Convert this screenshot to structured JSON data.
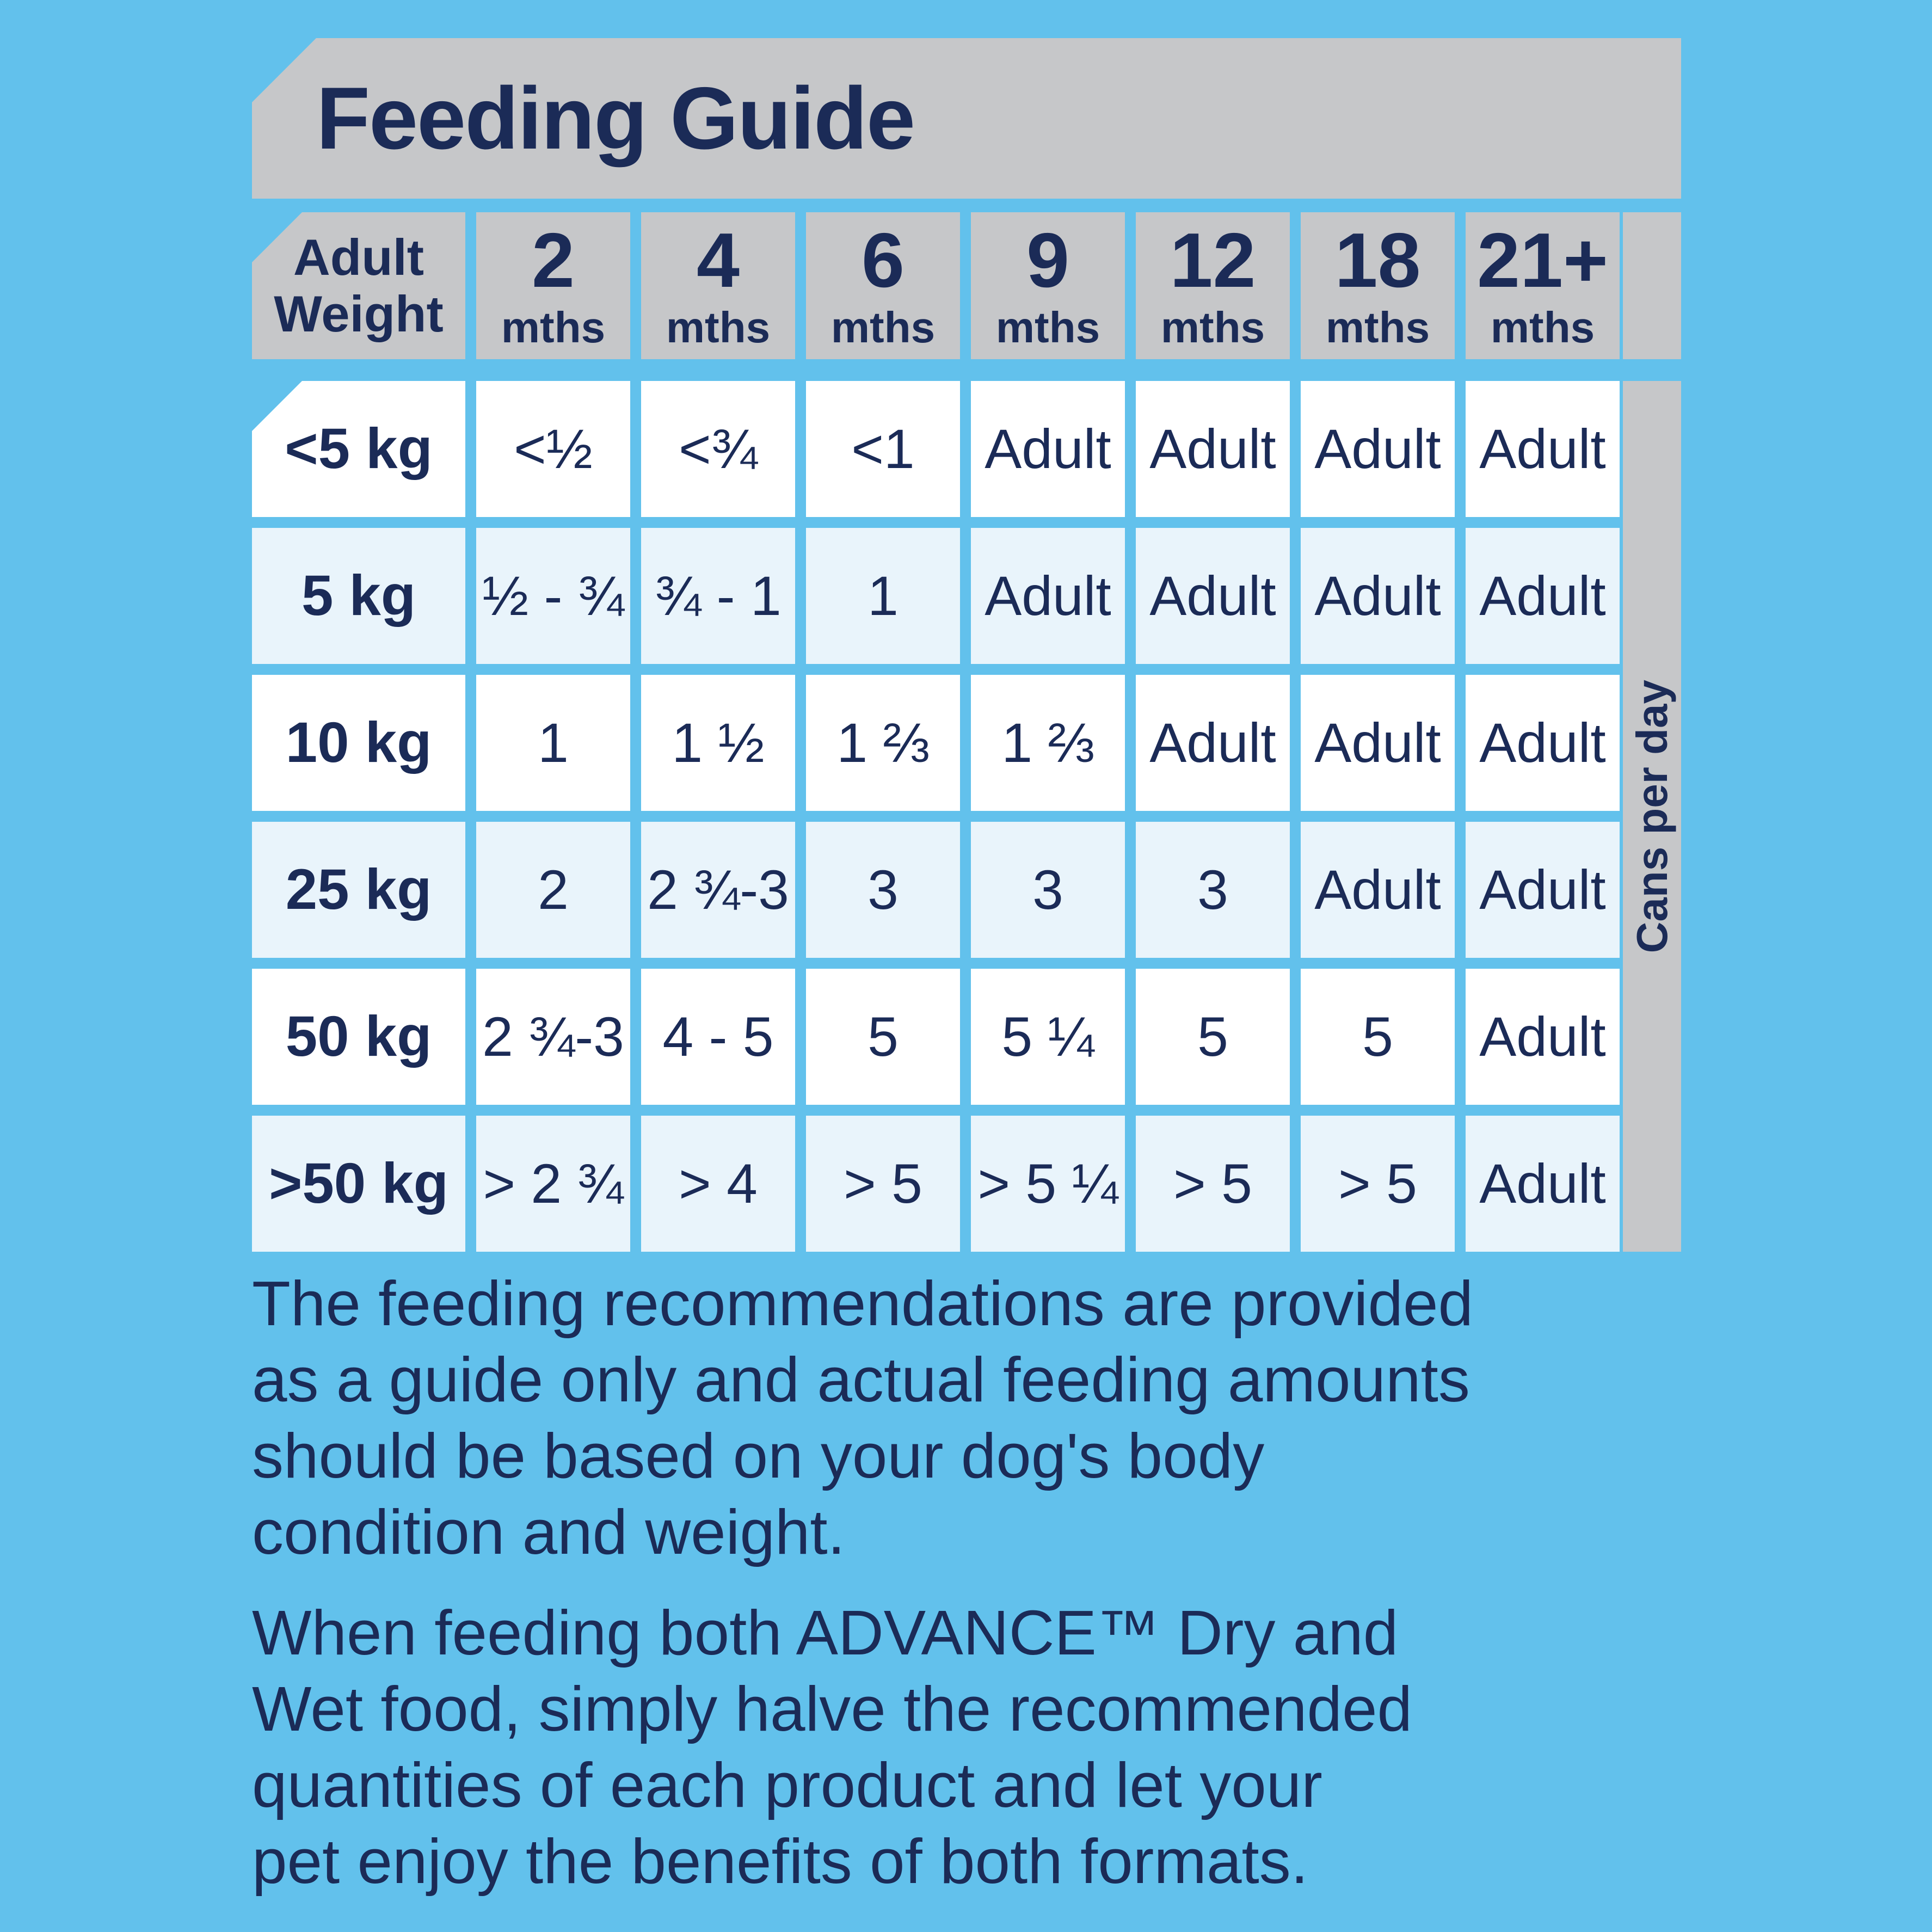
{
  "title": "Feeding Guide",
  "colors": {
    "background": "#62C1EC",
    "panel_gray": "#C6C7C9",
    "navy_text": "#1B2B57",
    "row_white": "#FFFFFF",
    "row_pale_blue": "#E9F4FB"
  },
  "table": {
    "corner_header": {
      "line1": "Adult",
      "line2": "Weight"
    },
    "columns": [
      {
        "number": "2",
        "unit": "mths"
      },
      {
        "number": "4",
        "unit": "mths"
      },
      {
        "number": "6",
        "unit": "mths"
      },
      {
        "number": "9",
        "unit": "mths"
      },
      {
        "number": "12",
        "unit": "mths"
      },
      {
        "number": "18",
        "unit": "mths"
      },
      {
        "number": "21+",
        "unit": "mths"
      }
    ],
    "side_label": "Cans per day",
    "rows": [
      {
        "weight": "<5 kg",
        "values": [
          "<½",
          "<¾",
          "<1",
          "Adult",
          "Adult",
          "Adult",
          "Adult"
        ]
      },
      {
        "weight": "5 kg",
        "values": [
          "½ - ¾",
          "¾ - 1",
          "1",
          "Adult",
          "Adult",
          "Adult",
          "Adult"
        ]
      },
      {
        "weight": "10 kg",
        "values": [
          "1",
          "1 ½",
          "1 ⅔",
          "1 ⅔",
          "Adult",
          "Adult",
          "Adult"
        ]
      },
      {
        "weight": "25 kg",
        "values": [
          "2",
          "2 ¾-3",
          "3",
          "3",
          "3",
          "Adult",
          "Adult"
        ]
      },
      {
        "weight": "50 kg",
        "values": [
          "2 ¾-3",
          "4 - 5",
          "5",
          "5 ¼",
          "5",
          "5",
          "Adult"
        ]
      },
      {
        "weight": ">50 kg",
        "values": [
          "> 2 ¾",
          "> 4",
          "> 5",
          "> 5 ¼",
          "> 5",
          "> 5",
          "Adult"
        ]
      }
    ]
  },
  "notes": [
    {
      "lines": [
        "The feeding recommendations are provided",
        "as a guide only and actual feeding amounts",
        "should be based on your dog's body",
        "condition and weight."
      ]
    },
    {
      "lines": [
        "When feeding both ADVANCE™ Dry and",
        "Wet food, simply halve the recommended",
        "quantities of each product and let your",
        "pet enjoy the benefits of both formats."
      ]
    }
  ]
}
